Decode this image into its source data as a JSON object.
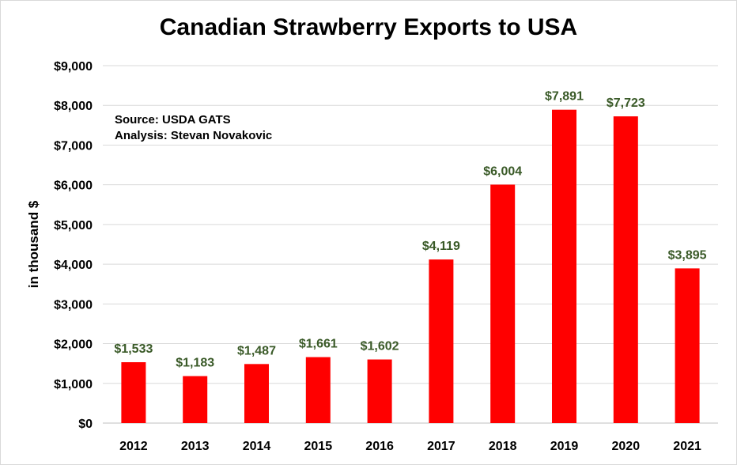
{
  "chart_data": {
    "type": "bar",
    "title": "Canadian Strawberry Exports to USA",
    "ylabel": "in thousand $",
    "xlabel": "",
    "categories": [
      "2012",
      "2013",
      "2014",
      "2015",
      "2016",
      "2017",
      "2018",
      "2019",
      "2020",
      "2021"
    ],
    "values": [
      1533,
      1183,
      1487,
      1661,
      1602,
      4119,
      6004,
      7891,
      7723,
      3895
    ],
    "data_labels": [
      "$1,533",
      "$1,183",
      "$1,487",
      "$1,661",
      "$1,602",
      "$4,119",
      "$6,004",
      "$7,891",
      "$7,723",
      "$3,895"
    ],
    "ylim": [
      0,
      9000
    ],
    "yticks": [
      0,
      1000,
      2000,
      3000,
      4000,
      5000,
      6000,
      7000,
      8000,
      9000
    ],
    "ytick_labels": [
      "$0",
      "$1,000",
      "$2,000",
      "$3,000",
      "$4,000",
      "$5,000",
      "$6,000",
      "$7,000",
      "$8,000",
      "$9,000"
    ],
    "grid": true,
    "legend": "none",
    "bar_color": "#ff0000",
    "label_color": "#3a5a28",
    "annotations": [
      "Source: USDA GATS",
      "Analysis: Stevan Novakovic"
    ]
  }
}
